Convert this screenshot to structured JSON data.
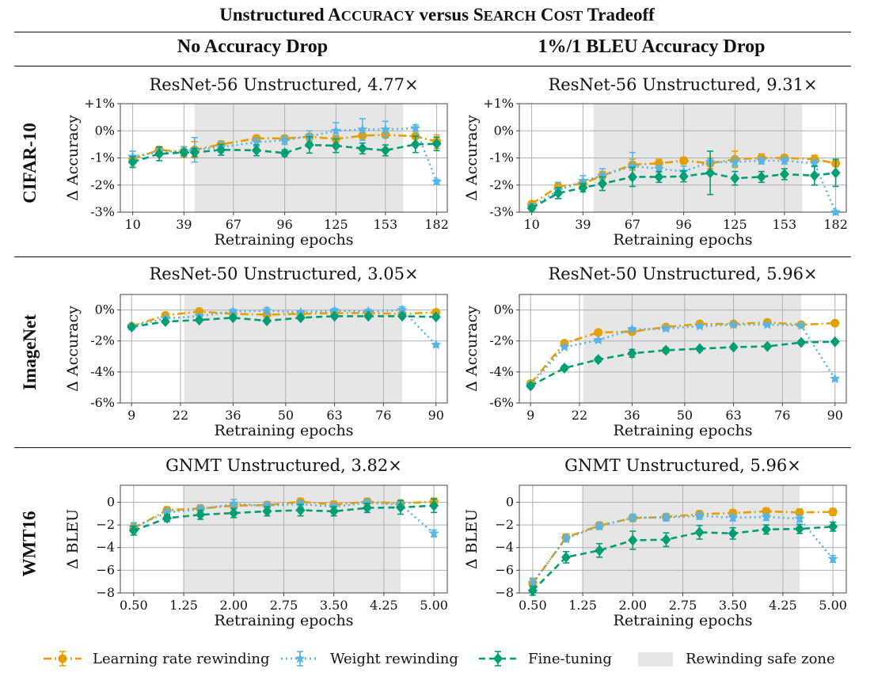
{
  "title": "Unstructured ACCURACY versus SEARCH COST Tradeoff",
  "columns": [
    "No Accuracy Drop",
    "1%/1 BLEU Accuracy Drop"
  ],
  "rows": [
    "CIFAR-10",
    "ImageNet",
    "WMT16"
  ],
  "legend": {
    "lrr": "Learning rate rewinding",
    "wr": "Weight rewinding",
    "ft": "Fine-tuning",
    "zone": "Rewinding safe zone"
  },
  "colors": {
    "lrr": "#E69F00",
    "wr": "#56B4E9",
    "ft": "#009E73",
    "zone": "#e6e6e6"
  },
  "chart_data": [
    {
      "type": "line",
      "title": "ResNet-56 Unstructured, 4.77×",
      "xlabel": "Retraining epochs",
      "ylabel": "Δ Accuracy",
      "xlim": [
        3,
        188
      ],
      "ylim": [
        -3,
        1
      ],
      "xticks": [
        10,
        39,
        67,
        96,
        125,
        153,
        182
      ],
      "xtick_labels": [
        "10",
        "39",
        "67",
        "96",
        "125",
        "153",
        "182"
      ],
      "yticks": [
        1,
        0,
        -1,
        -2,
        -3
      ],
      "ytick_labels": [
        "+1%",
        "0%",
        "-1%",
        "-2%",
        "-3%"
      ],
      "safe_zone": [
        45,
        163
      ],
      "x": [
        10,
        25,
        39,
        45,
        60,
        80,
        96,
        110,
        125,
        140,
        153,
        170,
        182
      ],
      "series": [
        {
          "name": "Learning rate rewinding",
          "key": "lrr",
          "y": [
            -1.05,
            -0.7,
            -0.78,
            -0.7,
            -0.5,
            -0.28,
            -0.28,
            -0.22,
            -0.3,
            -0.18,
            -0.15,
            -0.2,
            -0.4
          ],
          "err": [
            0.3,
            0.12,
            0.2,
            0.3,
            0.12,
            0.1,
            0.1,
            0.12,
            0.12,
            0.1,
            0.1,
            0.1,
            0.25
          ]
        },
        {
          "name": "Weight rewinding",
          "key": "wr",
          "y": [
            -0.95,
            -0.78,
            -0.75,
            -0.7,
            -0.6,
            -0.42,
            -0.35,
            -0.2,
            0,
            0.05,
            0.05,
            0.1,
            -1.88
          ],
          "err": [
            0.2,
            0.15,
            0.15,
            0.45,
            0.2,
            0.15,
            0.15,
            0.2,
            0.3,
            0.4,
            0.3,
            0.12,
            0.08
          ]
        },
        {
          "name": "Fine-tuning",
          "key": "ft",
          "y": [
            -1.15,
            -0.85,
            -0.8,
            -0.8,
            -0.7,
            -0.72,
            -0.82,
            -0.52,
            -0.55,
            -0.65,
            -0.72,
            -0.5,
            -0.48
          ],
          "err": [
            0.2,
            0.25,
            0.12,
            0.15,
            0.2,
            0.2,
            0.12,
            0.3,
            0.25,
            0.2,
            0.2,
            0.3,
            0.25
          ]
        }
      ]
    },
    {
      "type": "line",
      "title": "ResNet-56 Unstructured, 9.31×",
      "xlabel": "Retraining epochs",
      "ylabel": "Δ Accuracy",
      "xlim": [
        3,
        188
      ],
      "ylim": [
        -3,
        1
      ],
      "xticks": [
        10,
        39,
        67,
        96,
        125,
        153,
        182
      ],
      "xtick_labels": [
        "10",
        "39",
        "67",
        "96",
        "125",
        "153",
        "182"
      ],
      "yticks": [
        1,
        0,
        -1,
        -2,
        -3
      ],
      "ytick_labels": [
        "+1%",
        "0%",
        "-1%",
        "-2%",
        "-3%"
      ],
      "safe_zone": [
        45,
        163
      ],
      "x": [
        10,
        25,
        39,
        50,
        67,
        82,
        96,
        111,
        125,
        140,
        153,
        170,
        182
      ],
      "series": [
        {
          "name": "Learning rate rewinding",
          "key": "lrr",
          "y": [
            -2.7,
            -2.05,
            -1.95,
            -1.65,
            -1.25,
            -1.2,
            -1.1,
            -1.2,
            -1.05,
            -1.0,
            -1.0,
            -1.05,
            -1.2
          ],
          "err": [
            0.1,
            0.15,
            0.15,
            0.15,
            0.2,
            0.15,
            0.12,
            0.2,
            0.3,
            0.15,
            0.12,
            0.15,
            0.12
          ]
        },
        {
          "name": "Weight rewinding",
          "key": "wr",
          "y": [
            -2.8,
            -2.2,
            -1.85,
            -1.65,
            -1.3,
            -1.4,
            -1.5,
            -1.15,
            -1.15,
            -1.1,
            -1.1,
            -1.2,
            -3.0
          ],
          "err": [
            0.12,
            0.3,
            0.2,
            0.25,
            0.5,
            0.12,
            0.2,
            0.12,
            0.15,
            0.12,
            0.12,
            0.12,
            0.05
          ]
        },
        {
          "name": "Fine-tuning",
          "key": "ft",
          "y": [
            -2.85,
            -2.3,
            -2.1,
            -1.95,
            -1.7,
            -1.7,
            -1.68,
            -1.55,
            -1.75,
            -1.7,
            -1.6,
            -1.65,
            -1.55
          ],
          "err": [
            0.08,
            0.2,
            0.15,
            0.25,
            0.35,
            0.2,
            0.2,
            0.8,
            0.25,
            0.2,
            0.2,
            0.35,
            0.5
          ]
        }
      ]
    },
    {
      "type": "line",
      "title": "ResNet-50 Unstructured, 3.05×",
      "xlabel": "Retraining epochs",
      "ylabel": "Δ Accuracy",
      "xlim": [
        6,
        93
      ],
      "ylim": [
        -6,
        1
      ],
      "xticks": [
        9,
        22,
        36,
        50,
        63,
        76,
        90
      ],
      "xtick_labels": [
        "9",
        "22",
        "36",
        "50",
        "63",
        "76",
        "90"
      ],
      "yticks": [
        0,
        -2,
        -4,
        -6
      ],
      "ytick_labels": [
        "0%",
        "-2%",
        "-4%",
        "-6%"
      ],
      "safe_zone": [
        23,
        81
      ],
      "x": [
        9,
        18,
        27,
        36,
        45,
        54,
        63,
        72,
        81,
        90
      ],
      "series": [
        {
          "name": "Learning rate rewinding",
          "key": "lrr",
          "y": [
            -1.05,
            -0.35,
            -0.1,
            -0.25,
            -0.3,
            -0.25,
            -0.2,
            -0.2,
            -0.25,
            -0.15
          ],
          "err": [
            0.12,
            0.1,
            0.1,
            0.1,
            0.1,
            0.1,
            0.1,
            0.1,
            0.1,
            0.1
          ]
        },
        {
          "name": "Weight rewinding",
          "key": "wr",
          "y": [
            -1.05,
            -0.55,
            -0.4,
            -0.1,
            -0.05,
            -0.15,
            -0.05,
            -0.1,
            0.0,
            -2.25
          ],
          "err": [
            0.1,
            0.1,
            0.1,
            0.15,
            0.2,
            0.1,
            0.15,
            0.15,
            0.2,
            0.1
          ]
        },
        {
          "name": "Fine-tuning",
          "key": "ft",
          "y": [
            -1.1,
            -0.75,
            -0.65,
            -0.5,
            -0.7,
            -0.5,
            -0.4,
            -0.4,
            -0.4,
            -0.45
          ],
          "err": [
            0.12,
            0.1,
            0.1,
            0.1,
            0.1,
            0.1,
            0.1,
            0.1,
            0.1,
            0.1
          ]
        }
      ]
    },
    {
      "type": "line",
      "title": "ResNet-50 Unstructured, 5.96×",
      "xlabel": "Retraining epochs",
      "ylabel": "Δ Accuracy",
      "xlim": [
        6,
        93
      ],
      "ylim": [
        -6,
        1
      ],
      "xticks": [
        9,
        22,
        36,
        50,
        63,
        76,
        90
      ],
      "xtick_labels": [
        "9",
        "22",
        "36",
        "50",
        "63",
        "76",
        "90"
      ],
      "yticks": [
        0,
        -2,
        -4,
        -6
      ],
      "ytick_labels": [
        "0%",
        "-2%",
        "-4%",
        "-6%"
      ],
      "safe_zone": [
        23,
        81
      ],
      "x": [
        9,
        18,
        27,
        36,
        45,
        54,
        63,
        72,
        81,
        90
      ],
      "series": [
        {
          "name": "Learning rate rewinding",
          "key": "lrr",
          "y": [
            -4.75,
            -2.15,
            -1.45,
            -1.4,
            -1.1,
            -0.9,
            -0.9,
            -0.8,
            -0.95,
            -0.85
          ],
          "err": [
            0.12,
            0.1,
            0.1,
            0.1,
            0.1,
            0.1,
            0.1,
            0.1,
            0.1,
            0.1
          ]
        },
        {
          "name": "Weight rewinding",
          "key": "wr",
          "y": [
            -4.85,
            -2.4,
            -1.95,
            -1.25,
            -1.2,
            -1.05,
            -0.95,
            -0.95,
            -1.0,
            -4.45
          ],
          "err": [
            0.12,
            0.1,
            0.1,
            0.12,
            0.12,
            0.1,
            0.1,
            0.1,
            0.1,
            0.1
          ]
        },
        {
          "name": "Fine-tuning",
          "key": "ft",
          "y": [
            -4.9,
            -3.75,
            -3.2,
            -2.8,
            -2.6,
            -2.5,
            -2.4,
            -2.35,
            -2.1,
            -2.05
          ],
          "err": [
            0.1,
            0.15,
            0.15,
            0.25,
            0.15,
            0.12,
            0.12,
            0.12,
            0.12,
            0.1
          ]
        }
      ]
    },
    {
      "type": "line",
      "title": "GNMT Unstructured, 3.82×",
      "xlabel": "Retraining epochs",
      "ylabel": "Δ BLEU",
      "xlim": [
        0.3,
        5.2
      ],
      "ylim": [
        -8,
        1.5
      ],
      "xticks": [
        0.5,
        1.25,
        2.0,
        2.75,
        3.5,
        4.25,
        5.0
      ],
      "xtick_labels": [
        "0.50",
        "1.25",
        "2.00",
        "2.75",
        "3.50",
        "4.25",
        "5.00"
      ],
      "yticks": [
        0,
        -2,
        -4,
        -6,
        -8
      ],
      "ytick_labels": [
        "0",
        "−2",
        "−4",
        "−6",
        "−8"
      ],
      "safe_zone": [
        1.25,
        4.5
      ],
      "x": [
        0.5,
        1.0,
        1.5,
        2.0,
        2.5,
        3.0,
        3.5,
        4.0,
        4.5,
        5.0
      ],
      "series": [
        {
          "name": "Learning rate rewinding",
          "key": "lrr",
          "y": [
            -2.3,
            -0.7,
            -0.55,
            -0.3,
            -0.25,
            0.05,
            -0.2,
            0.05,
            -0.1,
            0.05
          ],
          "err": [
            0.4,
            0.3,
            0.3,
            0.3,
            0.3,
            0.3,
            0.3,
            0.3,
            0.3,
            0.3
          ]
        },
        {
          "name": "Weight rewinding",
          "key": "wr",
          "y": [
            -2.2,
            -0.9,
            -0.6,
            -0.15,
            -0.3,
            -0.15,
            -0.4,
            -0.05,
            -0.2,
            -2.75
          ],
          "err": [
            0.4,
            0.3,
            0.3,
            0.4,
            0.3,
            0.3,
            0.3,
            0.3,
            0.3,
            0.3
          ]
        },
        {
          "name": "Fine-tuning",
          "key": "ft",
          "y": [
            -2.5,
            -1.4,
            -1.1,
            -0.95,
            -0.8,
            -0.7,
            -0.8,
            -0.5,
            -0.45,
            -0.3
          ],
          "err": [
            0.4,
            0.3,
            0.4,
            0.4,
            0.4,
            0.5,
            0.4,
            0.4,
            0.6,
            0.6
          ]
        }
      ]
    },
    {
      "type": "line",
      "title": "GNMT Unstructured, 5.96×",
      "xlabel": "Retraining epochs",
      "ylabel": "Δ BLEU",
      "xlim": [
        0.3,
        5.2
      ],
      "ylim": [
        -8,
        1.5
      ],
      "xticks": [
        0.5,
        1.25,
        2.0,
        2.75,
        3.5,
        4.25,
        5.0
      ],
      "xtick_labels": [
        "0.50",
        "1.25",
        "2.00",
        "2.75",
        "3.50",
        "4.25",
        "5.00"
      ],
      "yticks": [
        0,
        -2,
        -4,
        -6,
        -8
      ],
      "ytick_labels": [
        "0",
        "−2",
        "−4",
        "−6",
        "−8"
      ],
      "safe_zone": [
        1.25,
        4.5
      ],
      "x": [
        0.5,
        1.0,
        1.5,
        2.0,
        2.5,
        3.0,
        3.5,
        4.0,
        4.5,
        5.0
      ],
      "series": [
        {
          "name": "Learning rate rewinding",
          "key": "lrr",
          "y": [
            -7.2,
            -3.1,
            -2.05,
            -1.4,
            -1.3,
            -1.05,
            -0.95,
            -0.8,
            -0.9,
            -0.85
          ],
          "err": [
            0.4,
            0.3,
            0.3,
            0.3,
            0.3,
            0.3,
            0.3,
            0.3,
            0.3,
            0.3
          ]
        },
        {
          "name": "Weight rewinding",
          "key": "wr",
          "y": [
            -7.1,
            -3.2,
            -2.1,
            -1.35,
            -1.35,
            -1.2,
            -1.35,
            -1.3,
            -1.45,
            -5.0
          ],
          "err": [
            0.4,
            0.3,
            0.3,
            0.3,
            0.3,
            0.3,
            0.3,
            0.3,
            0.3,
            0.3
          ]
        },
        {
          "name": "Fine-tuning",
          "key": "ft",
          "y": [
            -7.8,
            -4.85,
            -4.25,
            -3.35,
            -3.3,
            -2.65,
            -2.75,
            -2.4,
            -2.35,
            -2.15
          ],
          "err": [
            0.4,
            0.5,
            0.6,
            0.8,
            0.6,
            0.6,
            0.5,
            0.4,
            0.4,
            0.4
          ]
        }
      ]
    }
  ]
}
